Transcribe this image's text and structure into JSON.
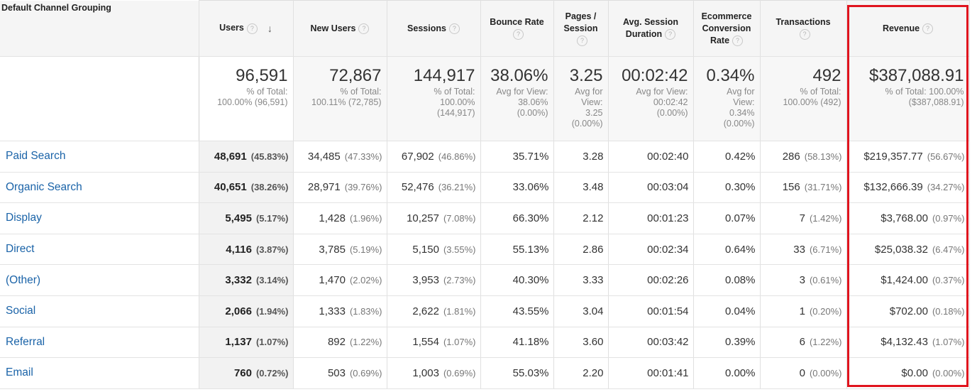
{
  "header": {
    "dimension": "Default Channel Grouping",
    "columns": [
      {
        "label": "Users",
        "sorted": true
      },
      {
        "label": "New Users"
      },
      {
        "label": "Sessions"
      },
      {
        "label": "Bounce Rate"
      },
      {
        "label": "Pages / Session"
      },
      {
        "label": "Avg. Session Duration"
      },
      {
        "label": "Ecommerce Conversion Rate"
      },
      {
        "label": "Transactions"
      },
      {
        "label": "Revenue"
      }
    ],
    "help_glyph": "?",
    "sort_glyph": "↓"
  },
  "totals": [
    {
      "value": "96,591",
      "sub": [
        "% of Total:",
        "100.00% (96,591)"
      ]
    },
    {
      "value": "72,867",
      "sub": [
        "% of Total:",
        "100.11% (72,785)"
      ]
    },
    {
      "value": "144,917",
      "sub": [
        "% of Total:",
        "100.00%",
        "(144,917)"
      ]
    },
    {
      "value": "38.06%",
      "sub": [
        "Avg for View:",
        "38.06%",
        "(0.00%)"
      ]
    },
    {
      "value": "3.25",
      "sub": [
        "Avg for",
        "View:",
        "3.25",
        "(0.00%)"
      ]
    },
    {
      "value": "00:02:42",
      "sub": [
        "Avg for View:",
        "00:02:42",
        "(0.00%)"
      ]
    },
    {
      "value": "0.34%",
      "sub": [
        "Avg for",
        "View:",
        "0.34%",
        "(0.00%)"
      ]
    },
    {
      "value": "492",
      "sub": [
        "% of Total:",
        "100.00% (492)"
      ]
    },
    {
      "value": "$387,088.91",
      "sub": [
        "% of Total: 100.00%",
        "($387,088.91)"
      ]
    }
  ],
  "rows": [
    {
      "name": "Paid Search",
      "users": "48,691",
      "users_pct": "(45.83%)",
      "new_users": "34,485",
      "new_users_pct": "(47.33%)",
      "sessions": "67,902",
      "sessions_pct": "(46.86%)",
      "bounce": "35.71%",
      "pages": "3.28",
      "duration": "00:02:40",
      "conv": "0.42%",
      "trans": "286",
      "trans_pct": "(58.13%)",
      "revenue": "$219,357.77",
      "revenue_pct": "(56.67%)"
    },
    {
      "name": "Organic Search",
      "users": "40,651",
      "users_pct": "(38.26%)",
      "new_users": "28,971",
      "new_users_pct": "(39.76%)",
      "sessions": "52,476",
      "sessions_pct": "(36.21%)",
      "bounce": "33.06%",
      "pages": "3.48",
      "duration": "00:03:04",
      "conv": "0.30%",
      "trans": "156",
      "trans_pct": "(31.71%)",
      "revenue": "$132,666.39",
      "revenue_pct": "(34.27%)"
    },
    {
      "name": "Display",
      "users": "5,495",
      "users_pct": "(5.17%)",
      "new_users": "1,428",
      "new_users_pct": "(1.96%)",
      "sessions": "10,257",
      "sessions_pct": "(7.08%)",
      "bounce": "66.30%",
      "pages": "2.12",
      "duration": "00:01:23",
      "conv": "0.07%",
      "trans": "7",
      "trans_pct": "(1.42%)",
      "revenue": "$3,768.00",
      "revenue_pct": "(0.97%)"
    },
    {
      "name": "Direct",
      "users": "4,116",
      "users_pct": "(3.87%)",
      "new_users": "3,785",
      "new_users_pct": "(5.19%)",
      "sessions": "5,150",
      "sessions_pct": "(3.55%)",
      "bounce": "55.13%",
      "pages": "2.86",
      "duration": "00:02:34",
      "conv": "0.64%",
      "trans": "33",
      "trans_pct": "(6.71%)",
      "revenue": "$25,038.32",
      "revenue_pct": "(6.47%)"
    },
    {
      "name": "(Other)",
      "users": "3,332",
      "users_pct": "(3.14%)",
      "new_users": "1,470",
      "new_users_pct": "(2.02%)",
      "sessions": "3,953",
      "sessions_pct": "(2.73%)",
      "bounce": "40.30%",
      "pages": "3.33",
      "duration": "00:02:26",
      "conv": "0.08%",
      "trans": "3",
      "trans_pct": "(0.61%)",
      "revenue": "$1,424.00",
      "revenue_pct": "(0.37%)"
    },
    {
      "name": "Social",
      "users": "2,066",
      "users_pct": "(1.94%)",
      "new_users": "1,333",
      "new_users_pct": "(1.83%)",
      "sessions": "2,622",
      "sessions_pct": "(1.81%)",
      "bounce": "43.55%",
      "pages": "3.04",
      "duration": "00:01:54",
      "conv": "0.04%",
      "trans": "1",
      "trans_pct": "(0.20%)",
      "revenue": "$702.00",
      "revenue_pct": "(0.18%)"
    },
    {
      "name": "Referral",
      "users": "1,137",
      "users_pct": "(1.07%)",
      "new_users": "892",
      "new_users_pct": "(1.22%)",
      "sessions": "1,554",
      "sessions_pct": "(1.07%)",
      "bounce": "41.18%",
      "pages": "3.60",
      "duration": "00:03:42",
      "conv": "0.39%",
      "trans": "6",
      "trans_pct": "(1.22%)",
      "revenue": "$4,132.43",
      "revenue_pct": "(1.07%)"
    },
    {
      "name": "Email",
      "users": "760",
      "users_pct": "(0.72%)",
      "new_users": "503",
      "new_users_pct": "(0.69%)",
      "sessions": "1,003",
      "sessions_pct": "(0.69%)",
      "bounce": "55.03%",
      "pages": "2.20",
      "duration": "00:01:41",
      "conv": "0.00%",
      "trans": "0",
      "trans_pct": "(0.00%)",
      "revenue": "$0.00",
      "revenue_pct": "(0.00%)"
    }
  ],
  "colors": {
    "link": "#1a63a8",
    "highlight": "#e0141e"
  }
}
